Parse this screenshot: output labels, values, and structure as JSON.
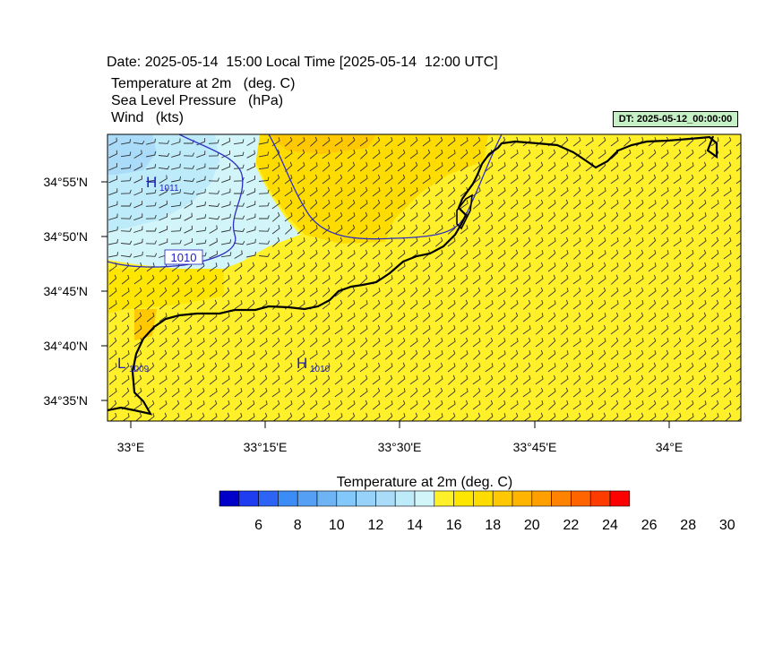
{
  "header": {
    "date_line": "Date: 2025-05-14  15:00 Local Time [2025-05-14  12:00 UTC]",
    "fields": [
      "Temperature at 2m   (deg. C)",
      "Sea Level Pressure   (hPa)",
      "Wind   (kts)"
    ],
    "dt_label": "DT: 2025-05-12_00:00:00"
  },
  "map": {
    "lat_labels": [
      "34°55'N",
      "34°50'N",
      "34°45'N",
      "34°40'N",
      "34°35'N"
    ],
    "lon_labels": [
      "33°E",
      "33°15'E",
      "33°30'E",
      "33°45'E",
      "34°E"
    ],
    "pressure_centers": [
      {
        "letter": "H",
        "value": "1011"
      },
      {
        "letter": "H",
        "value": "1010"
      },
      {
        "letter": "L",
        "value": "1009"
      }
    ],
    "isobar_label": "1010",
    "background_color": "#fff02a"
  },
  "colorbar": {
    "title": "Temperature at 2m  (deg. C)",
    "tick_labels": [
      "6",
      "8",
      "10",
      "12",
      "14",
      "16",
      "18",
      "20",
      "22",
      "24",
      "26",
      "28",
      "30"
    ],
    "colors": [
      "#0000c8",
      "#1e3cf0",
      "#2d64f5",
      "#3c8cf5",
      "#55a0f5",
      "#6eb4f5",
      "#82c8fa",
      "#96d2fa",
      "#aadcfa",
      "#beebfa",
      "#d2f5fa",
      "#fff02a",
      "#ffe600",
      "#ffdc00",
      "#ffc800",
      "#ffb400",
      "#ffa000",
      "#ff8200",
      "#ff6400",
      "#ff3c00",
      "#ff0000"
    ]
  }
}
